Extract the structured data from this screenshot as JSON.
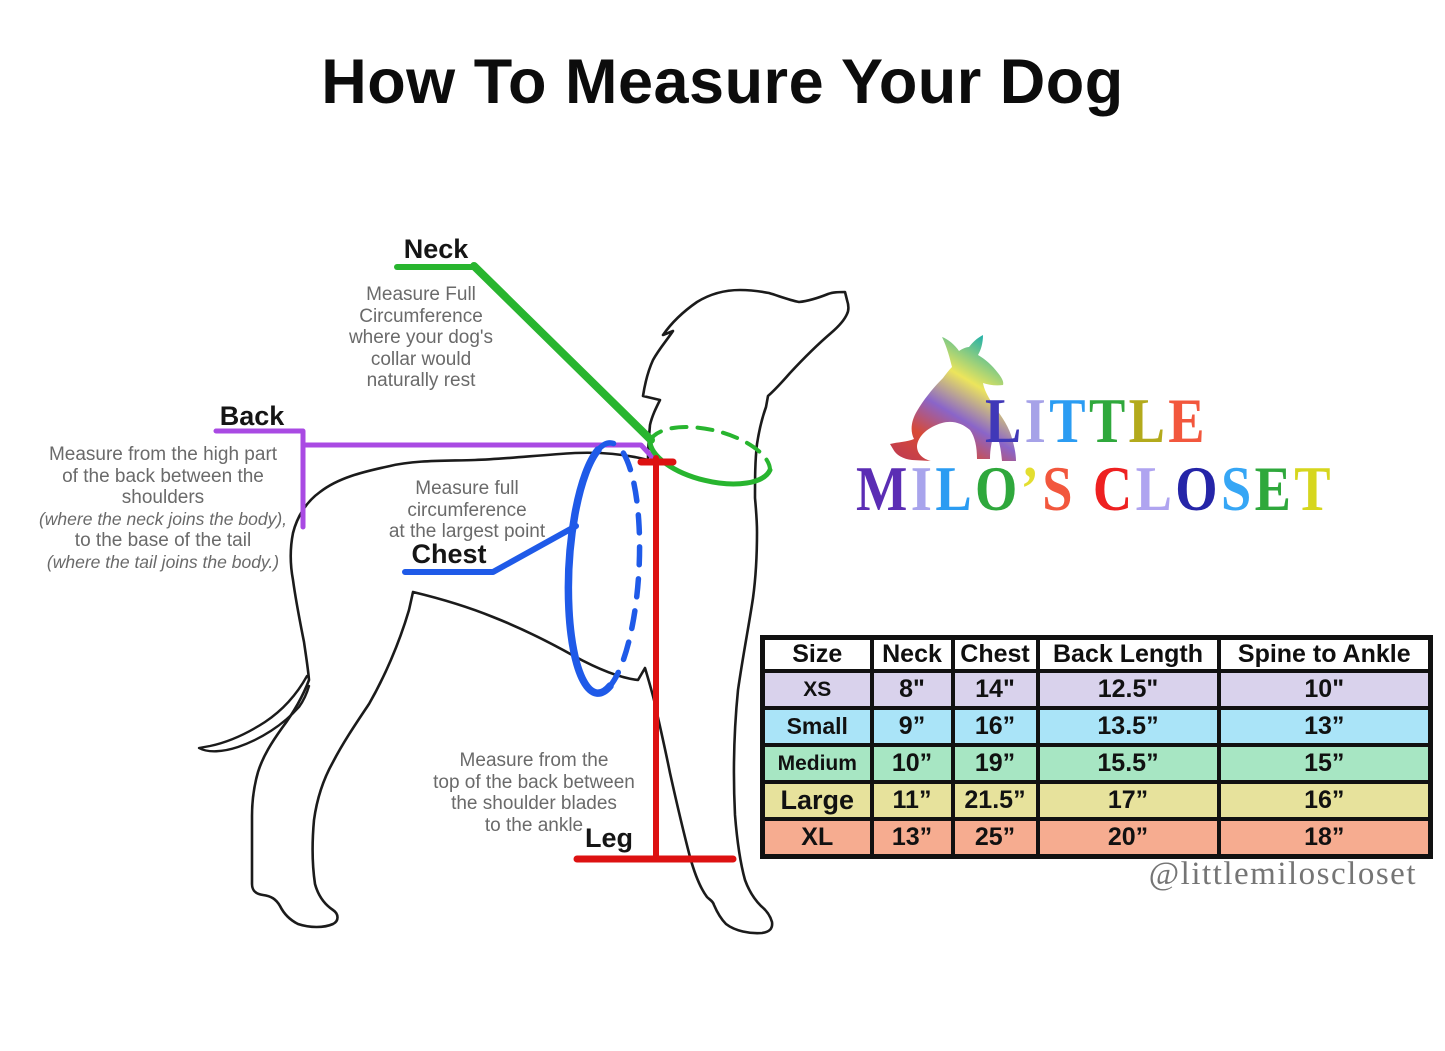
{
  "title": "How To Measure Your Dog",
  "annotations": {
    "neck": {
      "label": "Neck",
      "color": "#28b52f",
      "lines": [
        "Measure Full",
        "Circumference",
        "where your dog's",
        "collar would",
        "naturally rest"
      ]
    },
    "back": {
      "label": "Back",
      "color": "#a94ae3",
      "lines": [
        "Measure from the high part",
        "of the back between the",
        "shoulders",
        "(where the neck joins the body),",
        "to the base of the tail",
        "(where the tail joins the body.)"
      ]
    },
    "chest": {
      "label": "Chest",
      "color": "#1f5ae8",
      "lines": [
        "Measure full",
        "circumference",
        "at the largest point"
      ]
    },
    "leg": {
      "label": "Leg",
      "color": "#dd1111",
      "lines": [
        "Measure from the",
        "top of the back between",
        "the shoulder blades",
        "to the ankle"
      ]
    }
  },
  "logo": {
    "little": [
      {
        "ch": "L",
        "color": "#4038b8"
      },
      {
        "ch": "I",
        "color": "#a6a2e8"
      },
      {
        "ch": "T",
        "color": "#2b9cf2"
      },
      {
        "ch": "T",
        "color": "#2fa83c"
      },
      {
        "ch": "L",
        "color": "#b3aa1c"
      },
      {
        "ch": "E",
        "color": "#f2573d"
      }
    ],
    "milos_closet": [
      {
        "ch": "M",
        "color": "#5b2db4"
      },
      {
        "ch": "I",
        "color": "#a8a4ec"
      },
      {
        "ch": "L",
        "color": "#2b9cf2"
      },
      {
        "ch": "O",
        "color": "#2fa83c"
      },
      {
        "ch": "’",
        "color": "#e3de30"
      },
      {
        "ch": "S",
        "color": "#f2573d"
      },
      {
        "ch": " ",
        "color": "#000000"
      },
      {
        "ch": "C",
        "color": "#ee2020"
      },
      {
        "ch": "L",
        "color": "#afa4f0"
      },
      {
        "ch": "O",
        "color": "#2525a8"
      },
      {
        "ch": "S",
        "color": "#36a6f5"
      },
      {
        "ch": "E",
        "color": "#2fa83c"
      },
      {
        "ch": "T",
        "color": "#d6d61e"
      }
    ],
    "handle": "@littlemiloscloset"
  },
  "table": {
    "headers": [
      "Size",
      "Neck",
      "Chest",
      "Back Length",
      "Spine to Ankle"
    ],
    "rows": [
      {
        "size": "XS",
        "values": [
          "8\"",
          "14\"",
          "12.5\"",
          "10\""
        ],
        "bg": "#d9d2ec"
      },
      {
        "size": "Small",
        "values": [
          "9”",
          "16”",
          "13.5”",
          "13”"
        ],
        "bg": "#aae4f8"
      },
      {
        "size": "Medium",
        "values": [
          "10”",
          "19”",
          "15.5”",
          "15”"
        ],
        "bg": "#a7e6c3"
      },
      {
        "size": "Large",
        "values": [
          "11”",
          "21.5”",
          "17”",
          "16”"
        ],
        "bg": "#e7e29c"
      },
      {
        "size": "XL",
        "values": [
          "13”",
          "25”",
          "20”",
          "18”"
        ],
        "bg": "#f6ac90"
      }
    ]
  }
}
